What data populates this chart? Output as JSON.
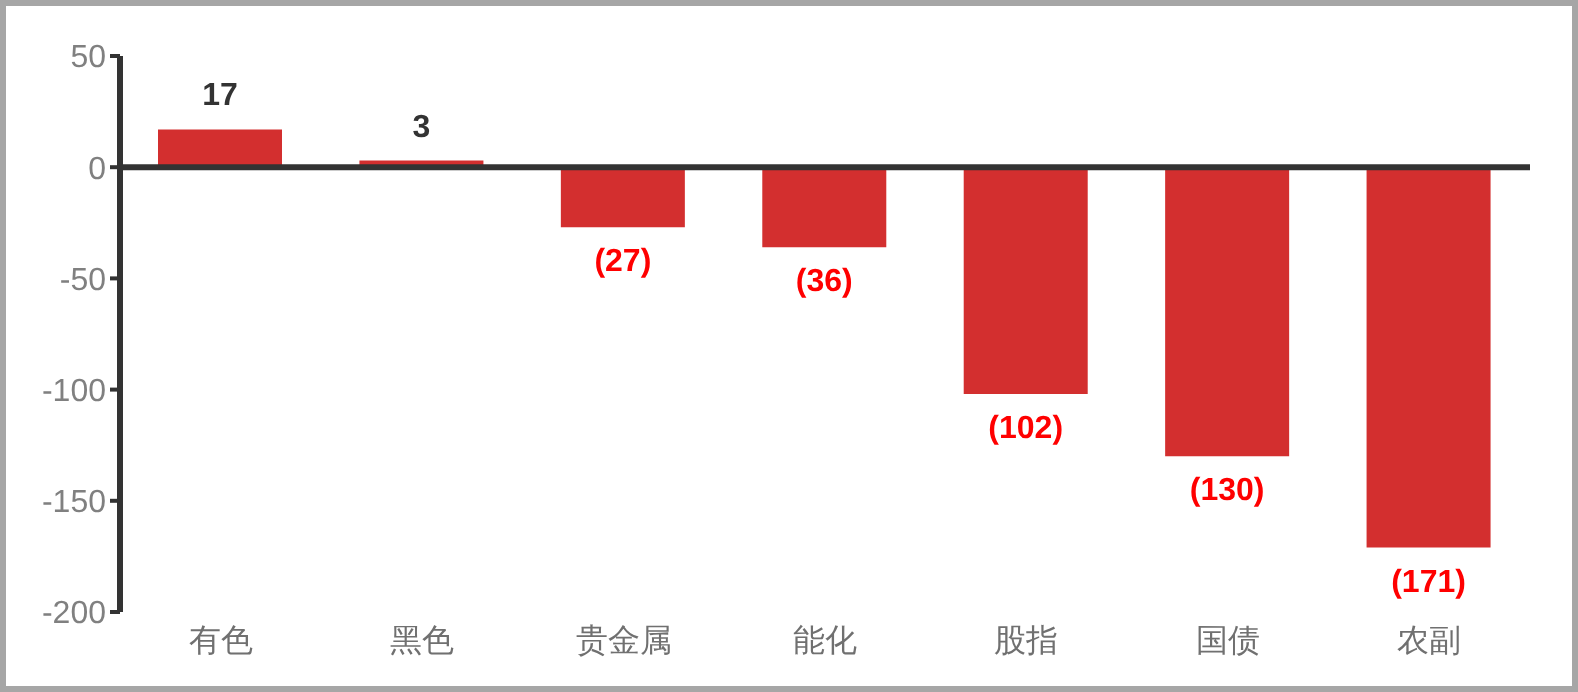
{
  "chart_data": {
    "type": "bar",
    "categories": [
      "有色",
      "黑色",
      "贵金属",
      "能化",
      "股指",
      "国债",
      "农副"
    ],
    "values": [
      17,
      3,
      -27,
      -36,
      -102,
      -130,
      -171
    ],
    "value_labels": [
      "17",
      "3",
      "(27)",
      "(36)",
      "(102)",
      "(130)",
      "(171)"
    ],
    "color": "#d32f2f",
    "ylim": [
      -200,
      50
    ],
    "yticks": [
      -200,
      -150,
      -100,
      -50,
      0,
      50
    ],
    "legend": false,
    "ref_lines": [
      {
        "axis": "y",
        "value": 0,
        "color": "#333333"
      }
    ]
  }
}
